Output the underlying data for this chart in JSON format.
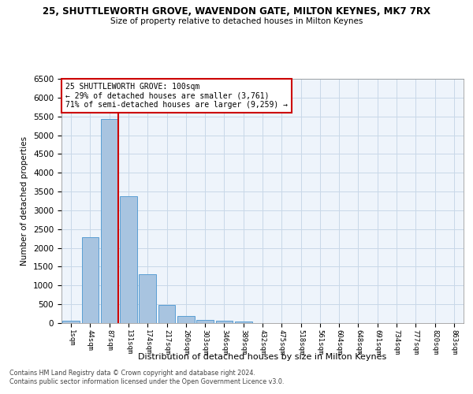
{
  "title": "25, SHUTTLEWORTH GROVE, WAVENDON GATE, MILTON KEYNES, MK7 7RX",
  "subtitle": "Size of property relative to detached houses in Milton Keynes",
  "xlabel": "Distribution of detached houses by size in Milton Keynes",
  "ylabel": "Number of detached properties",
  "bar_color": "#a8c4e0",
  "bar_edgecolor": "#5a9fd4",
  "grid_color": "#c8d8e8",
  "background_color": "#eef4fb",
  "annotation_box_color": "#cc0000",
  "vline_color": "#cc0000",
  "categories": [
    "1sqm",
    "44sqm",
    "87sqm",
    "131sqm",
    "174sqm",
    "217sqm",
    "260sqm",
    "303sqm",
    "346sqm",
    "389sqm",
    "432sqm",
    "475sqm",
    "518sqm",
    "561sqm",
    "604sqm",
    "648sqm",
    "691sqm",
    "734sqm",
    "777sqm",
    "820sqm",
    "863sqm"
  ],
  "values": [
    70,
    2280,
    5430,
    3380,
    1310,
    490,
    190,
    90,
    55,
    50,
    0,
    0,
    0,
    0,
    0,
    0,
    0,
    0,
    0,
    0,
    0
  ],
  "ylim": [
    0,
    6500
  ],
  "yticks": [
    0,
    500,
    1000,
    1500,
    2000,
    2500,
    3000,
    3500,
    4000,
    4500,
    5000,
    5500,
    6000,
    6500
  ],
  "vline_index": 2,
  "annotation_line1": "25 SHUTTLEWORTH GROVE: 100sqm",
  "annotation_line2": "← 29% of detached houses are smaller (3,761)",
  "annotation_line3": "71% of semi-detached houses are larger (9,259) →",
  "footnote1": "Contains HM Land Registry data © Crown copyright and database right 2024.",
  "footnote2": "Contains public sector information licensed under the Open Government Licence v3.0."
}
